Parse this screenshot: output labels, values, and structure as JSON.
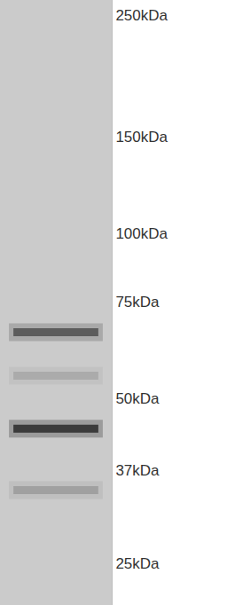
{
  "chart_data": {
    "type": "blot",
    "log": "y",
    "grid": false,
    "tick_labels": "y",
    "ylim": [
      21,
      266
    ],
    "yticks": [
      {
        "value": 250,
        "label": "250kDa"
      },
      {
        "value": 150,
        "label": "150kDa"
      },
      {
        "value": 100,
        "label": "100kDa"
      },
      {
        "value": 75,
        "label": "75kDa"
      },
      {
        "value": 50,
        "label": "50kDa"
      },
      {
        "value": 37,
        "label": "37kDa"
      },
      {
        "value": 25,
        "label": "25kDa"
      }
    ],
    "values": [
      66,
      55,
      44,
      34
    ],
    "intensity": [
      0.6,
      0.15,
      0.85,
      0.2
    ],
    "color": "#2a2a2a"
  }
}
